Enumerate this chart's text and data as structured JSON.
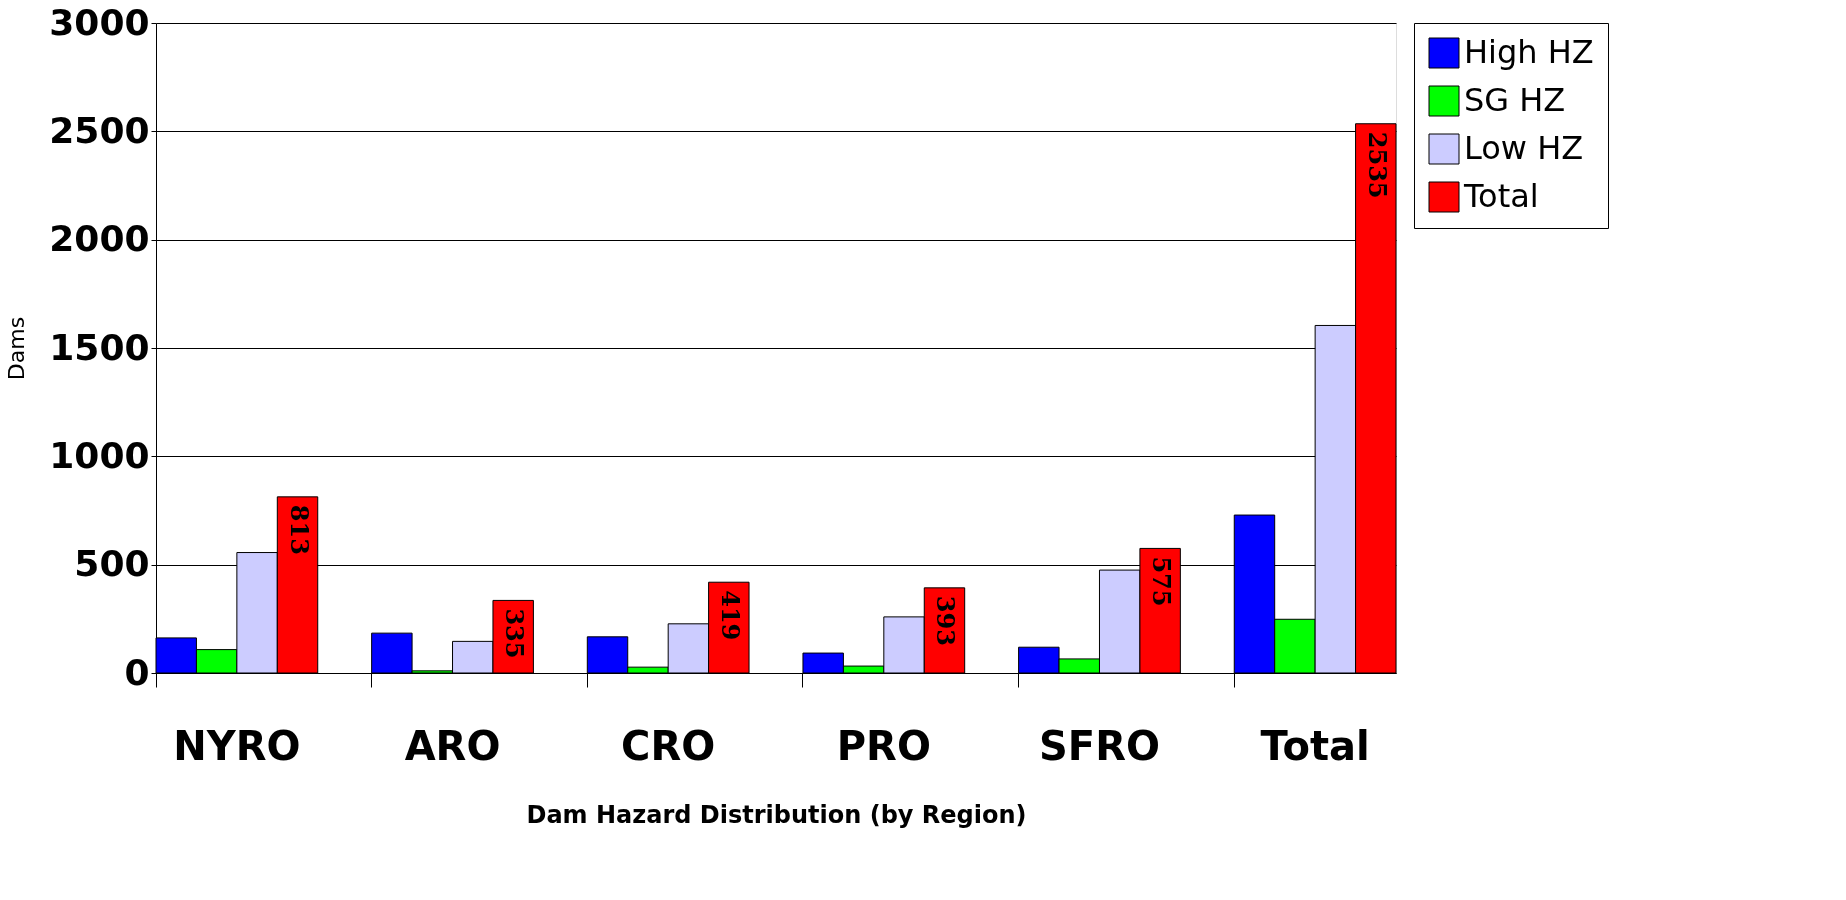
{
  "chart_data": {
    "type": "bar",
    "xlabel": "Dam Hazard Distribution (by Region)",
    "ylabel": "Dams",
    "categories": [
      "NYRO",
      "ARO",
      "CRO",
      "PRO",
      "SFRO",
      "Total"
    ],
    "series": [
      {
        "name": "High HZ",
        "color": "#0000ff",
        "values": [
          162,
          184,
          167,
          92,
          119,
          729
        ]
      },
      {
        "name": "SG HZ",
        "color": "#00ff00",
        "values": [
          108,
          10,
          27,
          32,
          65,
          248
        ]
      },
      {
        "name": "Low HZ",
        "color": "#ccccff",
        "values": [
          556,
          146,
          227,
          259,
          475,
          1604
        ]
      },
      {
        "name": "Total",
        "color": "#ff0000",
        "values": [
          813,
          335,
          419,
          393,
          575,
          2535
        ],
        "value_labels": [
          "813",
          "335",
          "419",
          "393",
          "575",
          "2535"
        ]
      }
    ],
    "ylim": [
      0,
      3000
    ],
    "yticks": [
      0,
      500,
      1000,
      1500,
      2000,
      2500,
      3000
    ],
    "grid": "y",
    "legend": "right"
  }
}
